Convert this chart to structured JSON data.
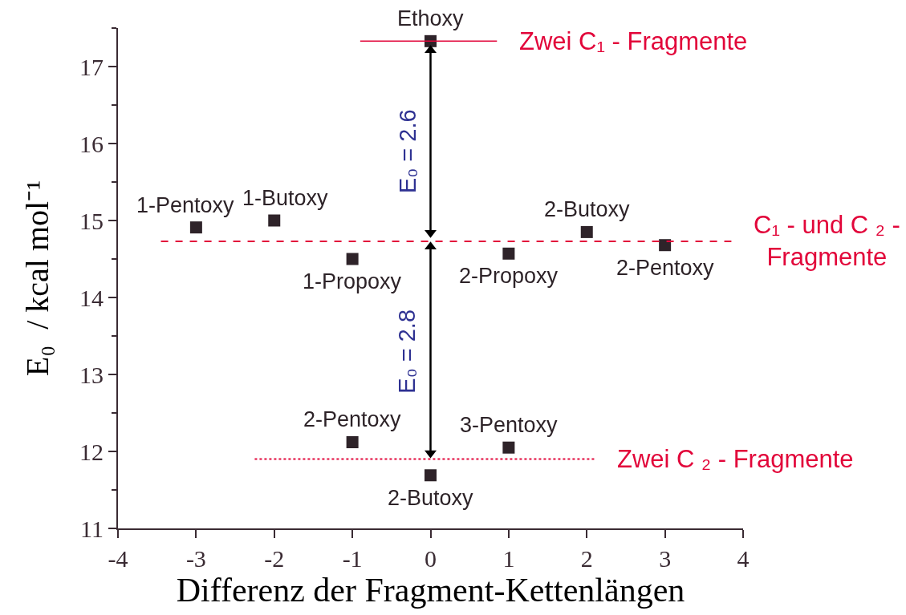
{
  "chart_data": {
    "type": "scatter",
    "xlabel": "Differenz der Fragment-Kettenlängen",
    "ylabel": "E₀  / kcal mol⁻¹",
    "xlim": [
      -4,
      4
    ],
    "xticks": [
      -4,
      -3,
      -2,
      -1,
      0,
      1,
      2,
      3,
      4
    ],
    "ylim": [
      11,
      17.5
    ],
    "yticks": [
      11,
      {
        "value": 11.5,
        "label": null
      },
      12,
      {
        "value": 12.5,
        "label": null
      },
      13,
      {
        "value": 13.5,
        "label": null
      },
      14,
      {
        "value": 14.5,
        "label": null
      },
      15,
      {
        "value": 15.5,
        "label": null
      },
      16,
      {
        "value": 16.5,
        "label": null
      },
      17,
      {
        "value": 17.5,
        "label": null
      }
    ],
    "series": [
      {
        "color": "#2e2329",
        "marker": "square",
        "x": [
          0,
          -3,
          -2,
          -1,
          1,
          2,
          3,
          -1,
          1,
          0
        ],
        "values": [
          17.33,
          14.91,
          15.0,
          14.5,
          14.57,
          14.85,
          14.68,
          12.12,
          12.05,
          11.69
        ]
      },
      {
        "type": "line",
        "name": "Zwei C₁ - Fragmente",
        "color": "#e2063a",
        "line_style": "solid",
        "x": [
          -0.9,
          0.85
        ],
        "values": [
          17.33,
          17.33
        ]
      },
      {
        "type": "line",
        "name": "C₁ - und C ₂ -\nFragmente",
        "color": "#e2063a",
        "line_style": "dashed",
        "x": [
          -3.45,
          3.85
        ],
        "values": [
          14.73,
          14.73
        ]
      },
      {
        "type": "line",
        "name": "Zwei C ₂ - Fragmente",
        "color": "#e2063a",
        "line_style": "dotted",
        "x": [
          -2.25,
          2.1
        ],
        "values": [
          11.9,
          11.9
        ]
      },
      {
        "type": "line",
        "color": "#000000",
        "line_style": "solid",
        "marker": "triangle",
        "x": [
          0,
          0
        ],
        "values": [
          17.21,
          14.84
        ]
      },
      {
        "type": "line",
        "color": "#000000",
        "line_style": "solid",
        "marker": "triangle",
        "x": [
          0,
          0
        ],
        "values": [
          14.66,
          11.98
        ]
      }
    ],
    "annotations": [
      {
        "text": "Ethoxy",
        "x": 0,
        "y": 17.33
      },
      {
        "text": "1-Pentoxy",
        "x": -3,
        "y": 14.91
      },
      {
        "text": "1-Butoxy",
        "x": -2,
        "y": 15.0
      },
      {
        "text": "1-Propoxy",
        "x": -1,
        "y": 14.5
      },
      {
        "text": "2-Propoxy",
        "x": 1,
        "y": 14.57
      },
      {
        "text": "2-Butoxy",
        "x": 2,
        "y": 14.85
      },
      {
        "text": "2-Pentoxy",
        "x": 3,
        "y": 14.68
      },
      {
        "text": "2-Pentoxy",
        "x": -1,
        "y": 12.12
      },
      {
        "text": "3-Pentoxy",
        "x": 1,
        "y": 12.05
      },
      {
        "text": "2-Butoxy",
        "x": 0,
        "y": 11.69
      },
      {
        "text": "E₀ = 2.6",
        "x": 0,
        "y": 15.9
      },
      {
        "text": "E₀ = 2.8",
        "x": 0,
        "y": 13.3
      }
    ]
  }
}
